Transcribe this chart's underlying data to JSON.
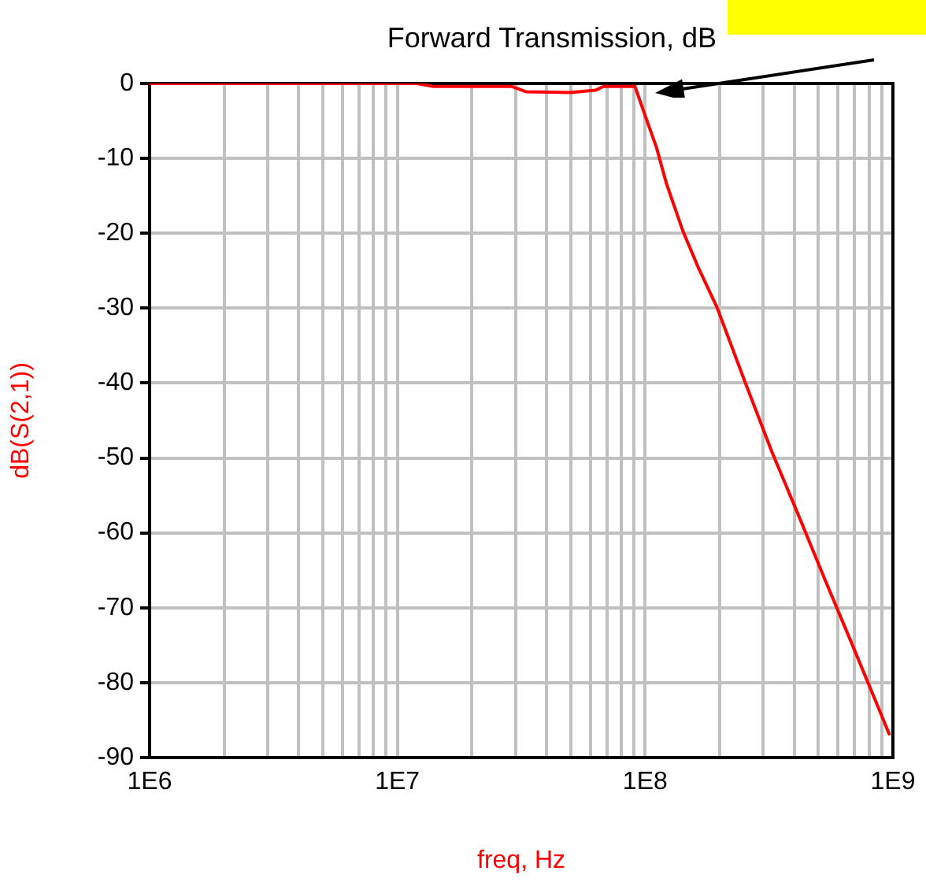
{
  "chart_data": {
    "type": "line",
    "xlabel": "freq, Hz",
    "ylabel": "dB(S(2,1))",
    "log": "x",
    "x": [
      1000000.0,
      5000000.0,
      12000000.0,
      14000000.0,
      29000000.0,
      33000000.0,
      50000000.0,
      63000000.0,
      68000000.0,
      87000000.0,
      91000000.0,
      100000000.0,
      111000000.0,
      122000000.0,
      142000000.0,
      164000000.0,
      195000000.0,
      254000000.0,
      324000000.0,
      414000000.0,
      528000000.0,
      675000000.0,
      860000000.0,
      970000000.0
    ],
    "series": [
      {
        "color": "#ff0000",
        "values": [
          0,
          0,
          0,
          -0.4,
          -0.4,
          -1.1,
          -1.2,
          -0.9,
          -0.4,
          -0.4,
          -0.4,
          -4.3,
          -8.5,
          -13.4,
          -19.7,
          -24.6,
          -29.9,
          -40,
          -49.1,
          -57.5,
          -66,
          -74.4,
          -82.8,
          -87
        ]
      }
    ],
    "xlim": [
      1000000.0,
      1000000000.0
    ],
    "xticks": [
      {
        "value": 1000000.0,
        "label": "1E6"
      },
      {
        "value": 2000000.0,
        "label": null
      },
      {
        "value": 3000000.0,
        "label": null
      },
      {
        "value": 4000000.0,
        "label": null
      },
      {
        "value": 5000000.0,
        "label": null
      },
      {
        "value": 6000000.0,
        "label": null
      },
      {
        "value": 7000000.0,
        "label": null
      },
      {
        "value": 8000000.0,
        "label": null
      },
      {
        "value": 9000000.0,
        "label": null
      },
      {
        "value": 10000000.0,
        "label": "1E7"
      },
      {
        "value": 20000000.0,
        "label": null
      },
      {
        "value": 30000000.0,
        "label": null
      },
      {
        "value": 40000000.0,
        "label": null
      },
      {
        "value": 50000000.0,
        "label": null
      },
      {
        "value": 60000000.0,
        "label": null
      },
      {
        "value": 70000000.0,
        "label": null
      },
      {
        "value": 80000000.0,
        "label": null
      },
      {
        "value": 90000000.0,
        "label": null
      },
      {
        "value": 100000000.0,
        "label": "1E8"
      },
      {
        "value": 200000000.0,
        "label": null
      },
      {
        "value": 300000000.0,
        "label": null
      },
      {
        "value": 400000000.0,
        "label": null
      },
      {
        "value": 500000000.0,
        "label": null
      },
      {
        "value": 600000000.0,
        "label": null
      },
      {
        "value": 700000000.0,
        "label": null
      },
      {
        "value": 800000000.0,
        "label": null
      },
      {
        "value": 900000000.0,
        "label": null
      },
      {
        "value": 1000000000.0,
        "label": "1E9"
      }
    ],
    "ylim": [
      -90,
      0
    ],
    "yticks": [
      -90,
      -80,
      -70,
      -60,
      -50,
      -40,
      -30,
      -20,
      -10,
      0
    ],
    "grid": true,
    "legend": false,
    "marker": "none",
    "line_style": "solid",
    "annotations": [
      "Forward Transmission, dB"
    ]
  }
}
